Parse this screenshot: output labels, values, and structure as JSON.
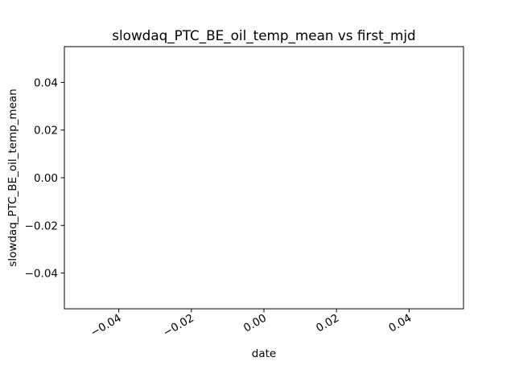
{
  "chart_data": {
    "type": "scatter",
    "title": "slowdaq_PTC_BE_oil_temp_mean vs first_mjd",
    "xlabel": "date",
    "ylabel": "slowdaq_PTC_BE_oil_temp_mean",
    "xlim": [
      -0.055,
      0.055
    ],
    "ylim": [
      -0.055,
      0.055
    ],
    "xticks": [
      -0.04,
      -0.02,
      0.0,
      0.02,
      0.04
    ],
    "xtick_labels": [
      "−0.04",
      "−0.02",
      "0.00",
      "0.02",
      "0.04"
    ],
    "yticks": [
      -0.04,
      -0.02,
      0.0,
      0.02,
      0.04
    ],
    "ytick_labels": [
      "−0.04",
      "−0.02",
      "0.00",
      "0.02",
      "0.04"
    ],
    "grid": false,
    "legend": "none",
    "series": [
      {
        "x": [],
        "y": []
      }
    ]
  }
}
